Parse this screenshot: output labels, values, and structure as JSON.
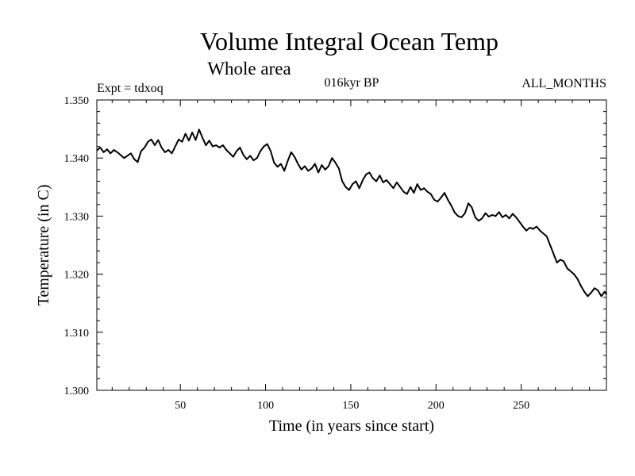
{
  "chart_data": {
    "type": "line",
    "title": "Volume Integral Ocean Temp",
    "subtitle": "Whole area",
    "annotations": {
      "left": "Expt = tdxoq",
      "center": "016kyr BP",
      "right": "ALL_MONTHS"
    },
    "xlabel": "Time (in years since start)",
    "ylabel": "Temperature (in C)",
    "xlim": [
      1,
      300
    ],
    "ylim": [
      1.3,
      1.35
    ],
    "x_ticks": [
      50,
      100,
      150,
      200,
      250
    ],
    "y_ticks": [
      "1.300",
      "1.310",
      "1.320",
      "1.330",
      "1.340",
      "1.350"
    ],
    "grid": false,
    "series": [
      {
        "color": "#000000",
        "x": [
          1,
          3,
          5,
          7,
          9,
          11,
          13,
          15,
          17,
          19,
          21,
          23,
          25,
          27,
          29,
          31,
          33,
          35,
          37,
          39,
          41,
          43,
          45,
          47,
          49,
          51,
          53,
          55,
          57,
          59,
          61,
          63,
          65,
          67,
          69,
          71,
          73,
          75,
          77,
          79,
          81,
          83,
          85,
          87,
          89,
          91,
          93,
          95,
          97,
          99,
          101,
          103,
          105,
          107,
          109,
          111,
          113,
          115,
          117,
          119,
          121,
          123,
          125,
          127,
          129,
          131,
          133,
          135,
          137,
          139,
          141,
          143,
          145,
          147,
          149,
          151,
          153,
          155,
          157,
          159,
          161,
          163,
          165,
          167,
          169,
          171,
          173,
          175,
          177,
          179,
          181,
          183,
          185,
          187,
          189,
          191,
          193,
          195,
          197,
          199,
          201,
          203,
          205,
          207,
          209,
          211,
          213,
          215,
          217,
          219,
          221,
          223,
          225,
          227,
          229,
          231,
          233,
          235,
          237,
          239,
          241,
          243,
          245,
          247,
          249,
          251,
          253,
          255,
          257,
          259,
          261,
          263,
          265,
          267,
          269,
          271,
          273,
          275,
          277,
          279,
          281,
          283,
          285,
          287,
          289,
          291,
          293,
          295,
          297,
          299,
          300
        ],
        "y": [
          1.3413,
          1.3418,
          1.341,
          1.3415,
          1.3408,
          1.3414,
          1.341,
          1.3405,
          1.34,
          1.3404,
          1.3408,
          1.3398,
          1.3393,
          1.3412,
          1.3418,
          1.3428,
          1.3432,
          1.3422,
          1.3431,
          1.3418,
          1.341,
          1.3414,
          1.3408,
          1.342,
          1.3432,
          1.3428,
          1.3442,
          1.343,
          1.3444,
          1.3431,
          1.3449,
          1.3435,
          1.3422,
          1.343,
          1.342,
          1.3422,
          1.3418,
          1.3422,
          1.3414,
          1.3408,
          1.3402,
          1.3412,
          1.3418,
          1.3405,
          1.3398,
          1.3404,
          1.3396,
          1.34,
          1.3412,
          1.342,
          1.3424,
          1.3412,
          1.3392,
          1.3385,
          1.339,
          1.3378,
          1.3395,
          1.341,
          1.3402,
          1.339,
          1.338,
          1.3386,
          1.3378,
          1.3382,
          1.339,
          1.3375,
          1.3388,
          1.338,
          1.3386,
          1.34,
          1.3392,
          1.3382,
          1.336,
          1.335,
          1.3345,
          1.3355,
          1.336,
          1.3348,
          1.3362,
          1.3372,
          1.3375,
          1.3365,
          1.336,
          1.337,
          1.3358,
          1.3362,
          1.3355,
          1.3348,
          1.3358,
          1.335,
          1.3342,
          1.3338,
          1.335,
          1.334,
          1.3355,
          1.3345,
          1.3348,
          1.3342,
          1.3338,
          1.3328,
          1.3325,
          1.3332,
          1.334,
          1.3328,
          1.3318,
          1.3306,
          1.33,
          1.3298,
          1.3305,
          1.3322,
          1.3315,
          1.3298,
          1.3292,
          1.3296,
          1.3305,
          1.3299,
          1.3302,
          1.33,
          1.3307,
          1.3298,
          1.3302,
          1.3296,
          1.3304,
          1.3298,
          1.329,
          1.3282,
          1.3275,
          1.328,
          1.3278,
          1.3282,
          1.3275,
          1.327,
          1.3265,
          1.325,
          1.3235,
          1.322,
          1.3225,
          1.3222,
          1.321,
          1.3205,
          1.32,
          1.3192,
          1.318,
          1.317,
          1.3162,
          1.3168,
          1.3176,
          1.3172,
          1.3162,
          1.317,
          1.3165
        ],
        "note_dummy": ""
      }
    ]
  }
}
